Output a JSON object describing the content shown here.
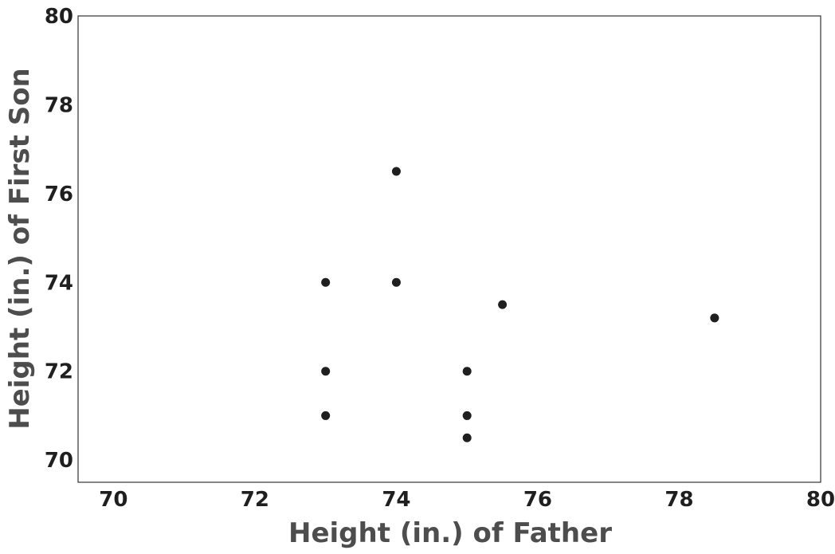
{
  "chart_data": {
    "type": "scatter",
    "title": "",
    "xlabel": "Height (in.) of Father",
    "ylabel": "Height (in.) of First Son",
    "xlim": [
      69.5,
      80
    ],
    "ylim": [
      69.5,
      80
    ],
    "x_ticks": [
      70,
      72,
      74,
      76,
      78,
      80
    ],
    "y_ticks": [
      70,
      72,
      74,
      76,
      78,
      80
    ],
    "x_tick_labels": [
      "70",
      "72",
      "74",
      "76",
      "78",
      "80"
    ],
    "y_tick_labels": [
      "70",
      "72",
      "74",
      "76",
      "78",
      "80"
    ],
    "grid": false,
    "legend": "none",
    "marker_color": "#1f1f1f",
    "series": [
      {
        "points": [
          {
            "x": 73,
            "y": 74
          },
          {
            "x": 73,
            "y": 72
          },
          {
            "x": 73,
            "y": 71
          },
          {
            "x": 74,
            "y": 76.5
          },
          {
            "x": 74,
            "y": 74
          },
          {
            "x": 75,
            "y": 72
          },
          {
            "x": 75,
            "y": 71
          },
          {
            "x": 75,
            "y": 70.5
          },
          {
            "x": 75.5,
            "y": 73.5
          },
          {
            "x": 78.5,
            "y": 73.2
          }
        ]
      }
    ]
  }
}
